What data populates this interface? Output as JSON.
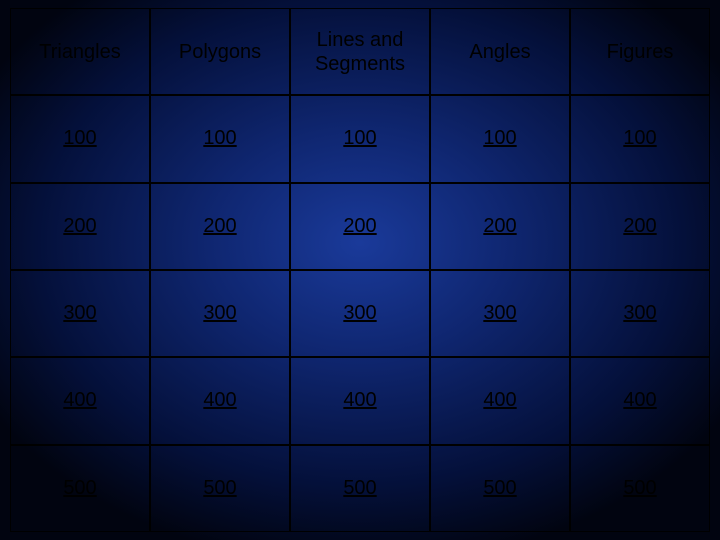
{
  "board": {
    "type": "table",
    "columns": [
      "Triangles",
      "Polygons",
      "Lines and Segments",
      "Angles",
      "Figures"
    ],
    "rows": [
      [
        "100",
        "100",
        "100",
        "100",
        "100"
      ],
      [
        "200",
        "200",
        "200",
        "200",
        "200"
      ],
      [
        "300",
        "300",
        "300",
        "300",
        "300"
      ],
      [
        "400",
        "400",
        "400",
        "400",
        "400"
      ],
      [
        "500",
        "500",
        "500",
        "500",
        "500"
      ]
    ],
    "header_fontsize": 20,
    "value_fontsize": 20,
    "text_color": "#000000",
    "border_color": "#000000",
    "value_underline": true,
    "background_gradient": {
      "type": "radial",
      "center_color": "#1a3a9a",
      "mid_color": "#0f2670",
      "outer_color": "#04103a",
      "edge_color": "#010410"
    }
  }
}
